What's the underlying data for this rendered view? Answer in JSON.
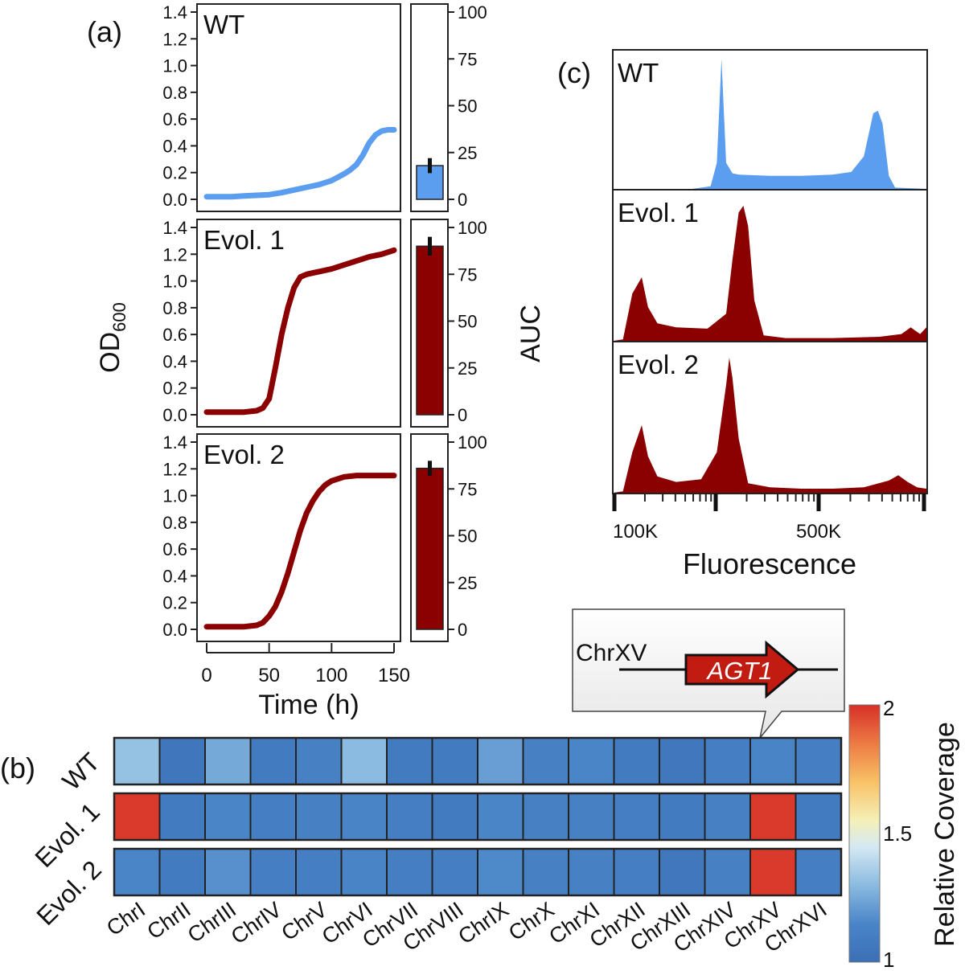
{
  "panel_labels": {
    "a": "(a)",
    "b": "(b)",
    "c": "(c)"
  },
  "colors": {
    "wt": "#5b9ef0",
    "evol": "#8b0000",
    "frame": "#222222",
    "callout_fill": "#ebebeb",
    "agt1_fill": "#c21b12"
  },
  "chart_data": [
    {
      "id": "growth_curves",
      "type": "line",
      "xlabel": "Time (h)",
      "ylabel": "OD",
      "ylabel_sub": "600",
      "xlim": [
        0,
        150
      ],
      "ylim": [
        0,
        1.4
      ],
      "xticks": [
        0,
        50,
        100,
        150
      ],
      "yticks": [
        0.0,
        0.2,
        0.4,
        0.6,
        0.8,
        1.0,
        1.2,
        1.4
      ],
      "series": [
        {
          "name": "WT",
          "label": "WT",
          "color": "#5b9ef0",
          "x": [
            0,
            10,
            20,
            30,
            40,
            50,
            60,
            70,
            80,
            90,
            100,
            110,
            115,
            120,
            125,
            130,
            135,
            140,
            145,
            150
          ],
          "y": [
            0.02,
            0.02,
            0.02,
            0.025,
            0.03,
            0.035,
            0.05,
            0.07,
            0.09,
            0.11,
            0.14,
            0.19,
            0.22,
            0.26,
            0.33,
            0.42,
            0.48,
            0.51,
            0.52,
            0.52
          ]
        },
        {
          "name": "Evol. 1",
          "label": "Evol. 1",
          "color": "#8b0000",
          "x": [
            0,
            10,
            20,
            30,
            40,
            45,
            50,
            55,
            60,
            65,
            70,
            75,
            80,
            85,
            90,
            100,
            110,
            120,
            130,
            140,
            150
          ],
          "y": [
            0.02,
            0.02,
            0.02,
            0.02,
            0.03,
            0.05,
            0.12,
            0.35,
            0.6,
            0.8,
            0.95,
            1.03,
            1.05,
            1.06,
            1.07,
            1.09,
            1.12,
            1.15,
            1.18,
            1.2,
            1.23
          ]
        },
        {
          "name": "Evol. 2",
          "label": "Evol. 2",
          "color": "#8b0000",
          "x": [
            0,
            10,
            20,
            30,
            40,
            45,
            50,
            55,
            60,
            65,
            70,
            75,
            80,
            85,
            90,
            95,
            100,
            110,
            120,
            130,
            140,
            150
          ],
          "y": [
            0.02,
            0.02,
            0.02,
            0.02,
            0.03,
            0.05,
            0.1,
            0.17,
            0.28,
            0.42,
            0.58,
            0.74,
            0.87,
            0.96,
            1.03,
            1.08,
            1.11,
            1.14,
            1.15,
            1.15,
            1.15,
            1.15
          ]
        }
      ]
    },
    {
      "id": "auc_bars",
      "type": "bar",
      "ylabel": "AUC",
      "ylim": [
        0,
        100
      ],
      "yticks": [
        0,
        25,
        50,
        75,
        100
      ],
      "categories": [
        "WT",
        "Evol. 1",
        "Evol. 2"
      ],
      "values": [
        18,
        90,
        86
      ],
      "errors": [
        4,
        5,
        4
      ],
      "colors": [
        "#5b9ef0",
        "#8b0000",
        "#8b0000"
      ]
    },
    {
      "id": "fluorescence",
      "type": "area",
      "xlabel": "Fluorescence",
      "xtick_labels": [
        "100K",
        "500K"
      ],
      "series": [
        {
          "name": "WT",
          "label": "WT",
          "color": "#5b9ef0",
          "x": [
            0,
            0.25,
            0.31,
            0.33,
            0.345,
            0.36,
            0.38,
            0.4,
            0.5,
            0.6,
            0.7,
            0.76,
            0.8,
            0.83,
            0.845,
            0.86,
            0.88,
            0.9,
            1.0
          ],
          "y": [
            0,
            0,
            0.02,
            0.2,
            1.0,
            0.2,
            0.12,
            0.11,
            0.1,
            0.1,
            0.11,
            0.13,
            0.25,
            0.58,
            0.6,
            0.5,
            0.1,
            0.01,
            0
          ]
        },
        {
          "name": "Evol. 1",
          "label": "Evol. 1",
          "color": "#8b0000",
          "x": [
            0,
            0.03,
            0.06,
            0.09,
            0.11,
            0.14,
            0.2,
            0.3,
            0.36,
            0.38,
            0.4,
            0.415,
            0.43,
            0.45,
            0.48,
            0.55,
            0.7,
            0.85,
            0.92,
            0.95,
            0.98,
            1.0
          ],
          "y": [
            0,
            0.01,
            0.35,
            0.47,
            0.25,
            0.13,
            0.1,
            0.09,
            0.2,
            0.6,
            0.95,
            1.0,
            0.85,
            0.3,
            0.04,
            0.02,
            0.02,
            0.03,
            0.05,
            0.1,
            0.05,
            0.1
          ]
        },
        {
          "name": "Evol. 2",
          "label": "Evol. 2",
          "color": "#8b0000",
          "x": [
            0,
            0.03,
            0.06,
            0.09,
            0.11,
            0.14,
            0.2,
            0.28,
            0.33,
            0.36,
            0.37,
            0.38,
            0.4,
            0.43,
            0.5,
            0.6,
            0.7,
            0.8,
            0.88,
            0.91,
            0.94,
            0.97,
            1.0
          ],
          "y": [
            0,
            0.01,
            0.3,
            0.5,
            0.27,
            0.12,
            0.08,
            0.1,
            0.3,
            0.8,
            1.0,
            0.85,
            0.4,
            0.07,
            0.04,
            0.03,
            0.03,
            0.04,
            0.09,
            0.13,
            0.08,
            0.04,
            0.03
          ]
        }
      ]
    },
    {
      "id": "coverage_heatmap",
      "type": "heatmap",
      "rows": [
        "WT",
        "Evol. 1",
        "Evol. 2"
      ],
      "columns": [
        "ChrI",
        "ChrII",
        "ChrIII",
        "ChrIV",
        "ChrV",
        "ChrVI",
        "ChrVII",
        "ChrVIII",
        "ChrIX",
        "ChrX",
        "ChrXI",
        "ChrXII",
        "ChrXIII",
        "ChrXIV",
        "ChrXV",
        "ChrXVI"
      ],
      "values": [
        [
          1.32,
          1.05,
          1.25,
          1.08,
          1.12,
          1.3,
          1.08,
          1.08,
          1.22,
          1.12,
          1.15,
          1.08,
          1.06,
          1.1,
          1.14,
          1.1
        ],
        [
          1.98,
          1.08,
          1.15,
          1.1,
          1.12,
          1.14,
          1.1,
          1.08,
          1.15,
          1.12,
          1.12,
          1.1,
          1.08,
          1.12,
          1.98,
          1.08
        ],
        [
          1.15,
          1.08,
          1.18,
          1.1,
          1.1,
          1.14,
          1.1,
          1.1,
          1.16,
          1.12,
          1.12,
          1.1,
          1.06,
          1.12,
          1.98,
          1.1
        ]
      ],
      "colorbar": {
        "label": "Relative Coverage",
        "range": [
          1,
          2
        ],
        "ticks": [
          1,
          1.5,
          2
        ]
      }
    }
  ],
  "callout": {
    "chromosome": "ChrXV",
    "gene": "AGT1"
  }
}
